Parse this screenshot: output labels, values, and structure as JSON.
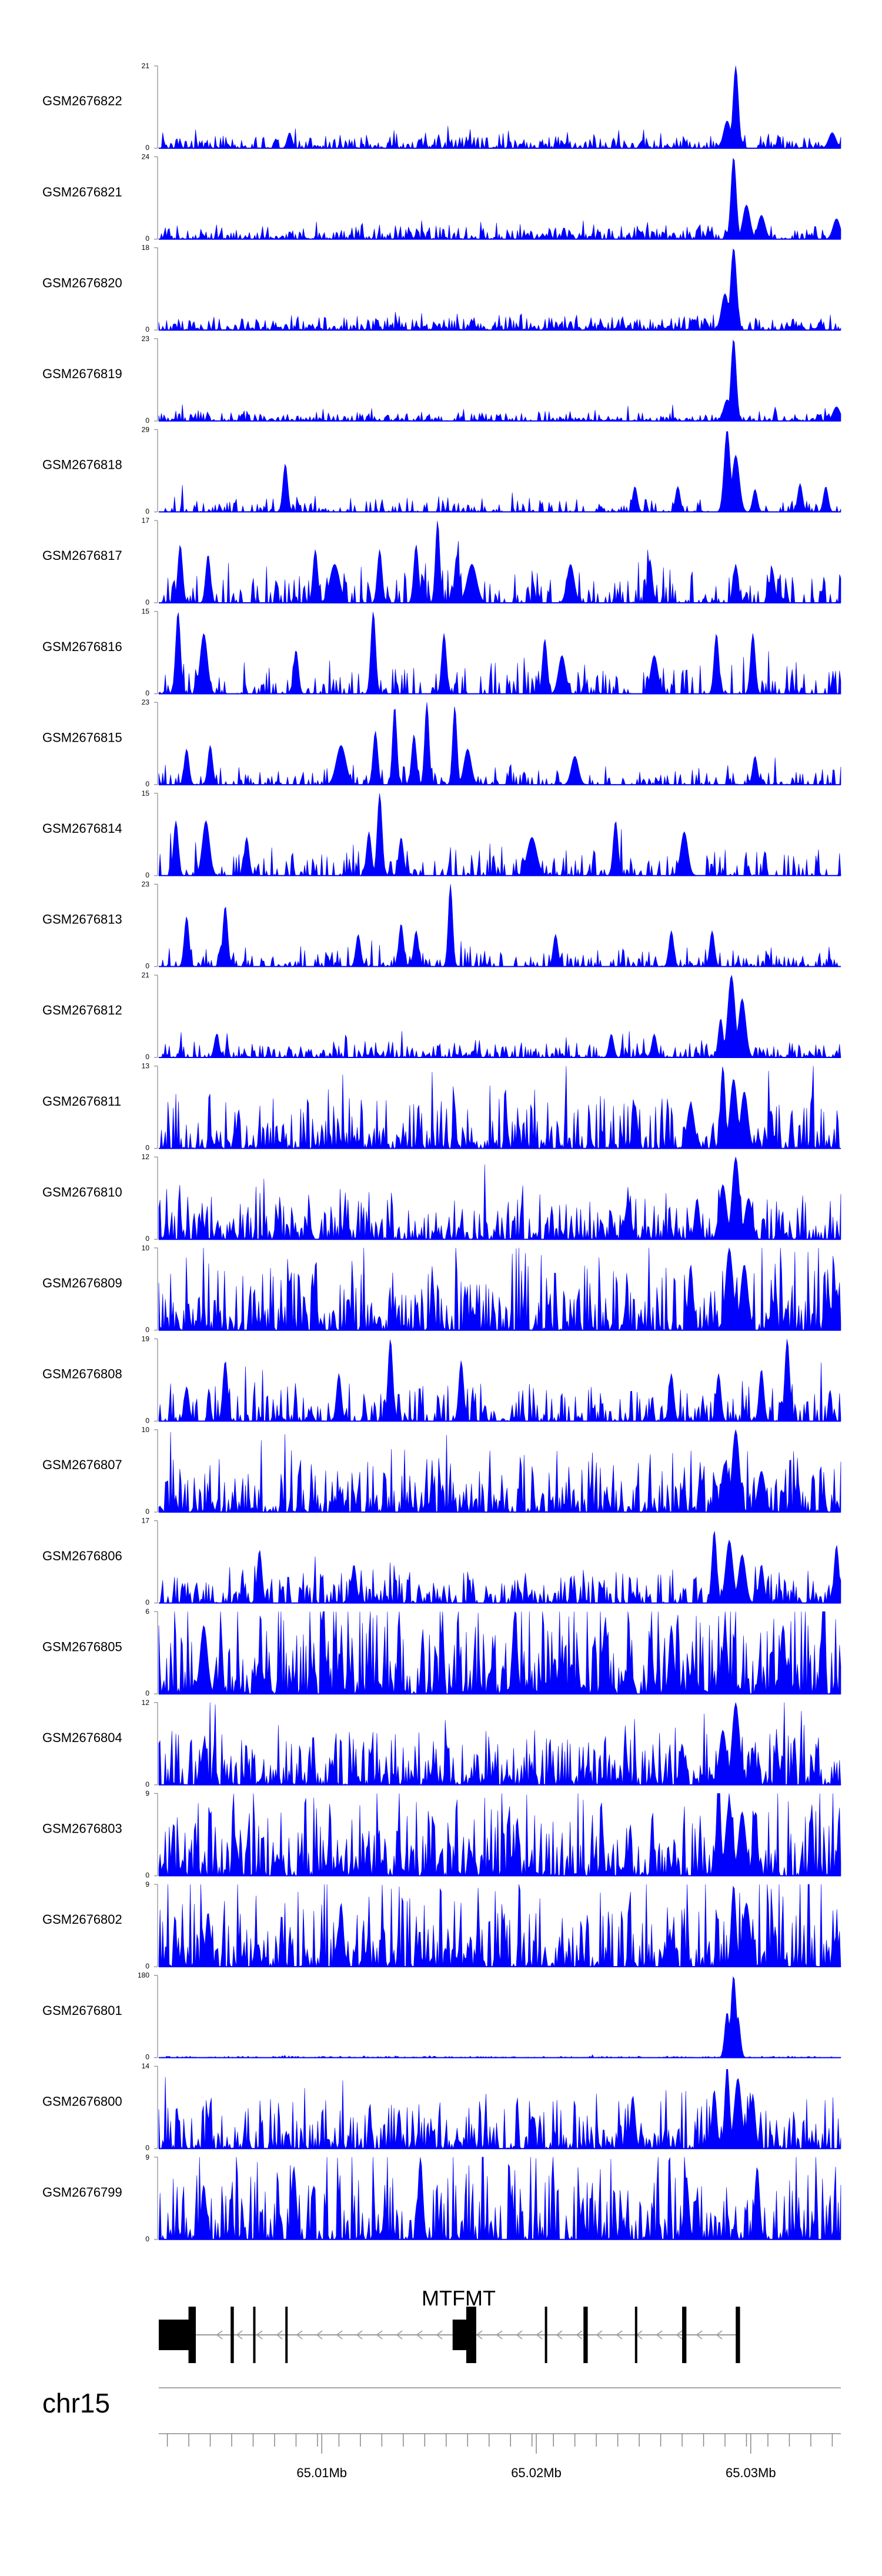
{
  "chart_data": {
    "type": "area",
    "title": "",
    "chromosome": "chr15",
    "region_mb": [
      65.0024,
      65.0342
    ],
    "fill_color": "#0000ff",
    "series": [
      {
        "name": "GSM2676822",
        "ymax": 21,
        "peaks": [
          [
            65.0293,
            21,
            0.00022
          ],
          [
            65.0289,
            7,
            0.0003
          ],
          [
            65.0085,
            4,
            0.0002
          ],
          [
            65.0338,
            4,
            0.0003
          ]
        ],
        "noise": 2.0,
        "gapFrac": 0.25,
        "seed": 11
      },
      {
        "name": "GSM2676821",
        "ymax": 24,
        "peaks": [
          [
            65.0292,
            24,
            0.00022
          ],
          [
            65.0298,
            10,
            0.0003
          ],
          [
            65.0305,
            7,
            0.0003
          ],
          [
            65.034,
            6,
            0.0003
          ]
        ],
        "noise": 2.5,
        "gapFrac": 0.25,
        "seed": 12
      },
      {
        "name": "GSM2676820",
        "ymax": 18,
        "peaks": [
          [
            65.0292,
            18,
            0.00025
          ],
          [
            65.0288,
            8,
            0.0003
          ]
        ],
        "noise": 1.8,
        "gapFrac": 0.15,
        "seed": 13
      },
      {
        "name": "GSM2676819",
        "ymax": 23,
        "peaks": [
          [
            65.0292,
            23,
            0.00022
          ],
          [
            65.0289,
            6,
            0.0003
          ],
          [
            65.034,
            4,
            0.0003
          ]
        ],
        "noise": 1.5,
        "gapFrac": 0.2,
        "seed": 14
      },
      {
        "name": "GSM2676818",
        "ymax": 29,
        "peaks": [
          [
            65.0289,
            29,
            0.00025
          ],
          [
            65.0293,
            20,
            0.0003
          ],
          [
            65.0083,
            17,
            0.0002
          ],
          [
            65.0302,
            8,
            0.0002
          ],
          [
            65.0323,
            10,
            0.0002
          ],
          [
            65.0335,
            9,
            0.0002
          ],
          [
            65.0246,
            9,
            0.0002
          ],
          [
            65.0266,
            9,
            0.0002
          ]
        ],
        "noise": 3,
        "gapFrac": 0.55,
        "seed": 15
      },
      {
        "name": "GSM2676817",
        "ymax": 17,
        "peaks": [
          [
            65.0154,
            17,
            0.00018
          ],
          [
            65.0034,
            12,
            0.0002
          ],
          [
            65.0127,
            11,
            0.0002
          ],
          [
            65.0144,
            12,
            0.0002
          ],
          [
            65.0163,
            10,
            0.0002
          ],
          [
            65.0047,
            10,
            0.0002
          ],
          [
            65.0097,
            11,
            0.0002
          ],
          [
            65.0106,
            8,
            0.0004
          ],
          [
            65.017,
            8,
            0.0004
          ],
          [
            65.0216,
            8,
            0.0003
          ],
          [
            65.0253,
            9,
            0.0002
          ],
          [
            65.0293,
            8,
            0.0002
          ],
          [
            65.031,
            7,
            0.0002
          ]
        ],
        "noise": 4,
        "gapFrac": 0.55,
        "seed": 16
      },
      {
        "name": "GSM2676816",
        "ymax": 15,
        "peaks": [
          [
            65.0033,
            15,
            0.0002
          ],
          [
            65.0124,
            15,
            0.0002
          ],
          [
            65.0045,
            11,
            0.0003
          ],
          [
            65.0157,
            11,
            0.0002
          ],
          [
            65.0204,
            10,
            0.0002
          ],
          [
            65.0284,
            11,
            0.0002
          ],
          [
            65.0301,
            11,
            0.0002
          ],
          [
            65.0088,
            8,
            0.0002
          ],
          [
            65.0212,
            7,
            0.0003
          ],
          [
            65.0255,
            7,
            0.0003
          ]
        ],
        "noise": 3,
        "gapFrac": 0.6,
        "seed": 17
      },
      {
        "name": "GSM2676815",
        "ymax": 23,
        "peaks": [
          [
            65.0149,
            23,
            0.00018
          ],
          [
            65.0134,
            22,
            0.00018
          ],
          [
            65.0162,
            22,
            0.00018
          ],
          [
            65.0109,
            11,
            0.0004
          ],
          [
            65.0125,
            15,
            0.0002
          ],
          [
            65.0143,
            14,
            0.0002
          ],
          [
            65.0168,
            10,
            0.0003
          ],
          [
            65.0037,
            10,
            0.0002
          ],
          [
            65.0048,
            11,
            0.0002
          ],
          [
            65.0218,
            8,
            0.0003
          ],
          [
            65.0302,
            8,
            0.0002
          ]
        ],
        "noise": 3,
        "gapFrac": 0.6,
        "seed": 18
      },
      {
        "name": "GSM2676814",
        "ymax": 15,
        "peaks": [
          [
            65.0127,
            15,
            0.0002
          ],
          [
            65.0032,
            10,
            0.0002
          ],
          [
            65.0046,
            10,
            0.0003
          ],
          [
            65.0065,
            7,
            0.0002
          ],
          [
            65.0122,
            8,
            0.0002
          ],
          [
            65.0137,
            7,
            0.0002
          ],
          [
            65.0198,
            7,
            0.0004
          ],
          [
            65.0237,
            10,
            0.0002
          ],
          [
            65.0269,
            8,
            0.0003
          ]
        ],
        "noise": 3,
        "gapFrac": 0.6,
        "seed": 19
      },
      {
        "name": "GSM2676813",
        "ymax": 23,
        "peaks": [
          [
            65.016,
            23,
            0.00018
          ],
          [
            65.0037,
            14,
            0.0002
          ],
          [
            65.0055,
            17,
            0.0002
          ],
          [
            65.0117,
            9,
            0.0002
          ],
          [
            65.0137,
            12,
            0.0002
          ],
          [
            65.0144,
            10,
            0.0002
          ],
          [
            65.0209,
            9,
            0.0002
          ],
          [
            65.0263,
            10,
            0.0002
          ],
          [
            65.0282,
            10,
            0.0002
          ]
        ],
        "noise": 3,
        "gapFrac": 0.5,
        "seed": 20
      },
      {
        "name": "GSM2676812",
        "ymax": 21,
        "peaks": [
          [
            65.0291,
            21,
            0.0003
          ],
          [
            65.0296,
            15,
            0.0003
          ],
          [
            65.0286,
            10,
            0.0002
          ],
          [
            65.0051,
            6,
            0.0002
          ],
          [
            65.0235,
            6,
            0.0002
          ],
          [
            65.0255,
            6,
            0.0002
          ]
        ],
        "noise": 2.5,
        "gapFrac": 0.3,
        "seed": 21
      },
      {
        "name": "GSM2676811",
        "ymax": 13,
        "peaks": [
          [
            65.0287,
            13,
            0.0002
          ],
          [
            65.0292,
            11,
            0.0003
          ],
          [
            65.0297,
            9,
            0.0003
          ],
          [
            65.0272,
            7,
            0.0003
          ],
          [
            65.0246,
            7,
            0.0002
          ]
        ],
        "noise": 5,
        "gapFrac": 0.25,
        "seed": 22
      },
      {
        "name": "GSM2676810",
        "ymax": 12,
        "peaks": [
          [
            65.0293,
            12,
            0.0003
          ],
          [
            65.0287,
            8,
            0.0003
          ],
          [
            65.0299,
            6,
            0.0003
          ],
          [
            65.0275,
            6,
            0.0002
          ]
        ],
        "noise": 4,
        "gapFrac": 0.25,
        "seed": 23
      },
      {
        "name": "GSM2676809",
        "ymax": 10,
        "peaks": [
          [
            65.029,
            10,
            0.0003
          ],
          [
            65.0297,
            8,
            0.0003
          ],
          [
            65.0272,
            8,
            0.0002
          ],
          [
            65.034,
            5,
            0.0002
          ]
        ],
        "noise": 5,
        "gapFrac": 0.25,
        "seed": 24
      },
      {
        "name": "GSM2676808",
        "ymax": 19,
        "peaks": [
          [
            65.0132,
            19,
            0.0002
          ],
          [
            65.0317,
            19,
            0.0002
          ],
          [
            65.0055,
            14,
            0.0002
          ],
          [
            65.0108,
            11,
            0.0002
          ],
          [
            65.0165,
            14,
            0.0002
          ],
          [
            65.0263,
            11,
            0.0002
          ],
          [
            65.0285,
            11,
            0.0002
          ],
          [
            65.0305,
            12,
            0.0002
          ],
          [
            65.0037,
            8,
            0.0002
          ]
        ],
        "noise": 5,
        "gapFrac": 0.45,
        "seed": 25
      },
      {
        "name": "GSM2676807",
        "ymax": 10,
        "peaks": [
          [
            65.0293,
            10,
            0.0003
          ],
          [
            65.0288,
            6,
            0.0003
          ],
          [
            65.0305,
            5,
            0.0003
          ]
        ],
        "noise": 4,
        "gapFrac": 0.2,
        "seed": 26
      },
      {
        "name": "GSM2676806",
        "ymax": 17,
        "peaks": [
          [
            65.0283,
            15,
            0.0002
          ],
          [
            65.029,
            13,
            0.0003
          ],
          [
            65.0296,
            10,
            0.0003
          ],
          [
            65.034,
            12,
            0.0002
          ],
          [
            65.0305,
            8,
            0.0002
          ],
          [
            65.0071,
            11,
            0.0002
          ],
          [
            65.0115,
            8,
            0.0002
          ]
        ],
        "noise": 4,
        "gapFrac": 0.35,
        "seed": 27
      },
      {
        "name": "GSM2676805",
        "ymax": 6,
        "peaks": [
          [
            65.019,
            6,
            0.0002
          ],
          [
            65.0232,
            5,
            0.0002
          ],
          [
            65.0263,
            5,
            0.0002
          ],
          [
            65.0045,
            5,
            0.0003
          ],
          [
            65.0288,
            5,
            0.0002
          ],
          [
            65.0315,
            5,
            0.0002
          ]
        ],
        "noise": 4,
        "gapFrac": 0.1,
        "seed": 28
      },
      {
        "name": "GSM2676804",
        "ymax": 12,
        "peaks": [
          [
            65.0293,
            12,
            0.0003
          ],
          [
            65.0287,
            8,
            0.0003
          ],
          [
            65.0268,
            6,
            0.0002
          ],
          [
            65.0045,
            6,
            0.0002
          ]
        ],
        "noise": 5,
        "gapFrac": 0.2,
        "seed": 29
      },
      {
        "name": "GSM2676803",
        "ymax": 9,
        "peaks": [
          [
            65.0285,
            9,
            0.0002
          ],
          [
            65.029,
            8,
            0.0003
          ],
          [
            65.0296,
            7,
            0.0003
          ],
          [
            65.0302,
            7,
            0.0002
          ]
        ],
        "noise": 5,
        "gapFrac": 0.2,
        "seed": 30
      },
      {
        "name": "GSM2676802",
        "ymax": 9,
        "peaks": [
          [
            65.0292,
            9,
            0.0002
          ],
          [
            65.0298,
            7,
            0.0003
          ],
          [
            65.0109,
            7,
            0.0002
          ],
          [
            65.0047,
            6,
            0.0002
          ]
        ],
        "noise": 5,
        "gapFrac": 0.25,
        "seed": 31
      },
      {
        "name": "GSM2676801",
        "ymax": 180,
        "peaks": [
          [
            65.0292,
            180,
            0.00022
          ],
          [
            65.0289,
            100,
            0.0002
          ],
          [
            65.0294,
            90,
            0.0002
          ]
        ],
        "noise": 2,
        "gapFrac": 0.1,
        "seed": 32
      },
      {
        "name": "GSM2676800",
        "ymax": 14,
        "peaks": [
          [
            65.0289,
            14,
            0.0002
          ],
          [
            65.0294,
            12,
            0.0003
          ],
          [
            65.0283,
            10,
            0.0002
          ],
          [
            65.0301,
            9,
            0.0002
          ],
          [
            65.0245,
            9,
            0.0002
          ]
        ],
        "noise": 5,
        "gapFrac": 0.25,
        "seed": 33
      },
      {
        "name": "GSM2676799",
        "ymax": 9,
        "peaks": [
          [
            65.0146,
            9,
            0.0002
          ],
          [
            65.0087,
            8,
            0.0002
          ],
          [
            65.0303,
            8,
            0.0002
          ],
          [
            65.027,
            7,
            0.0002
          ],
          [
            65.0045,
            6,
            0.0002
          ]
        ],
        "noise": 5,
        "gapFrac": 0.25,
        "seed": 34
      }
    ],
    "gene": {
      "name": "MTFMT",
      "strand": "-",
      "exons": [
        [
          65.0024,
          65.00395,
          "tall"
        ],
        [
          65.00395,
          65.0041,
          "tall"
        ],
        [
          65.00575,
          65.0059,
          "narrow"
        ],
        [
          65.0068,
          65.0069,
          "narrow"
        ],
        [
          65.0083,
          65.0084,
          "narrow"
        ],
        [
          65.0161,
          65.0169,
          "tall"
        ],
        [
          65.0169,
          65.0172,
          "narrow"
        ],
        [
          65.0204,
          65.0205,
          "narrow"
        ],
        [
          65.0222,
          65.0224,
          "narrow"
        ],
        [
          65.0246,
          65.0247,
          "narrow"
        ],
        [
          65.0268,
          65.027,
          "narrow"
        ],
        [
          65.0293,
          65.0295,
          "narrow"
        ]
      ],
      "intron": [
        65.0041,
        65.0295
      ]
    },
    "xaxis": {
      "minor_ticks_mb": [
        65.0028,
        65.0038,
        65.0048,
        65.0058,
        65.0068,
        65.0078,
        65.0088,
        65.0098,
        65.0108,
        65.0118,
        65.0128,
        65.0138,
        65.0148,
        65.0158,
        65.0168,
        65.0178,
        65.0188,
        65.0198,
        65.0208,
        65.0218,
        65.0228,
        65.0238,
        65.0248,
        65.0258,
        65.0268,
        65.0278,
        65.0288,
        65.0298,
        65.0308,
        65.0318,
        65.0328,
        65.0338
      ],
      "major_ticks_mb": [
        65.01,
        65.02,
        65.03
      ],
      "tick_labels": [
        "65.01Mb",
        "65.02Mb",
        "65.03Mb"
      ]
    }
  }
}
